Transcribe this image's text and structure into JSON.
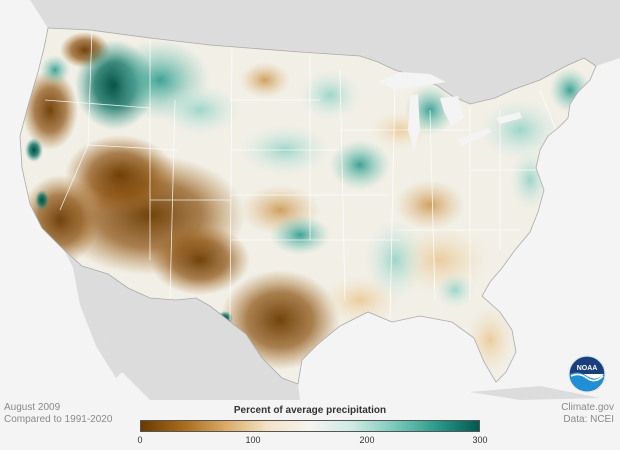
{
  "map": {
    "period_label": "August 2009",
    "baseline_label": "Compared to 1991-2020",
    "credit_site": "Climate.gov",
    "credit_data": "Data: NCEI"
  },
  "legend": {
    "title": "Percent of average precipitation",
    "ticks": [
      "0",
      "100",
      "200",
      "300"
    ],
    "min": 0,
    "max": 300,
    "colors": [
      "#6b3a00",
      "#a86a1b",
      "#d9ab67",
      "#f3e3c5",
      "#f4f4f0",
      "#cdeae3",
      "#7cc9bb",
      "#2a9a8c",
      "#005a4e"
    ]
  },
  "colors": {
    "background": "#f4f4f4",
    "neighbor_land": "#dcdcdc",
    "state_border": "#ffffff",
    "noaa_blue": "#1f6fb5"
  },
  "logo": {
    "text": "NOAA"
  }
}
